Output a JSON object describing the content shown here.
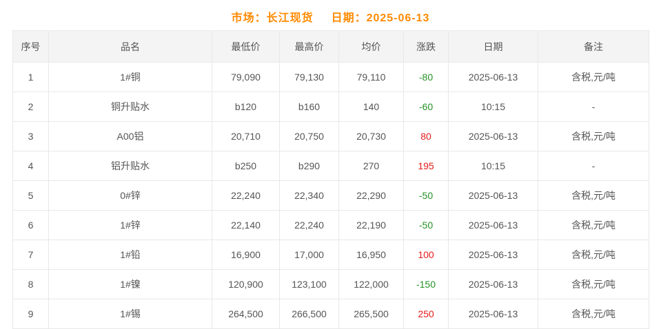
{
  "header": {
    "market": "市场：长江现货",
    "date": "日期：2025-06-13"
  },
  "colors": {
    "title_orange": "#ff8a00",
    "up_red": "#e51c1c",
    "down_green": "#269326"
  },
  "table": {
    "columns": [
      "序号",
      "品名",
      "最低价",
      "最高价",
      "均价",
      "涨跌",
      "日期",
      "备注"
    ],
    "rows": [
      {
        "no": "1",
        "name": "1#铜",
        "low": "79,090",
        "high": "79,130",
        "avg": "79,110",
        "change": "-80",
        "date": "2025-06-13",
        "note": "含税,元/吨"
      },
      {
        "no": "2",
        "name": "铜升贴水",
        "low": "b120",
        "high": "b160",
        "avg": "140",
        "change": "-60",
        "date": "10:15",
        "note": "-"
      },
      {
        "no": "3",
        "name": "A00铝",
        "low": "20,710",
        "high": "20,750",
        "avg": "20,730",
        "change": "80",
        "date": "2025-06-13",
        "note": "含税,元/吨"
      },
      {
        "no": "4",
        "name": "铝升贴水",
        "low": "b250",
        "high": "b290",
        "avg": "270",
        "change": "195",
        "date": "10:15",
        "note": "-"
      },
      {
        "no": "5",
        "name": "0#锌",
        "low": "22,240",
        "high": "22,340",
        "avg": "22,290",
        "change": "-50",
        "date": "2025-06-13",
        "note": "含税,元/吨"
      },
      {
        "no": "6",
        "name": "1#锌",
        "low": "22,140",
        "high": "22,240",
        "avg": "22,190",
        "change": "-50",
        "date": "2025-06-13",
        "note": "含税,元/吨"
      },
      {
        "no": "7",
        "name": "1#铅",
        "low": "16,900",
        "high": "17,000",
        "avg": "16,950",
        "change": "100",
        "date": "2025-06-13",
        "note": "含税,元/吨"
      },
      {
        "no": "8",
        "name": "1#镍",
        "low": "120,900",
        "high": "123,100",
        "avg": "122,000",
        "change": "-150",
        "date": "2025-06-13",
        "note": "含税,元/吨"
      },
      {
        "no": "9",
        "name": "1#锡",
        "low": "264,500",
        "high": "266,500",
        "avg": "265,500",
        "change": "250",
        "date": "2025-06-13",
        "note": "含税,元/吨"
      }
    ]
  }
}
